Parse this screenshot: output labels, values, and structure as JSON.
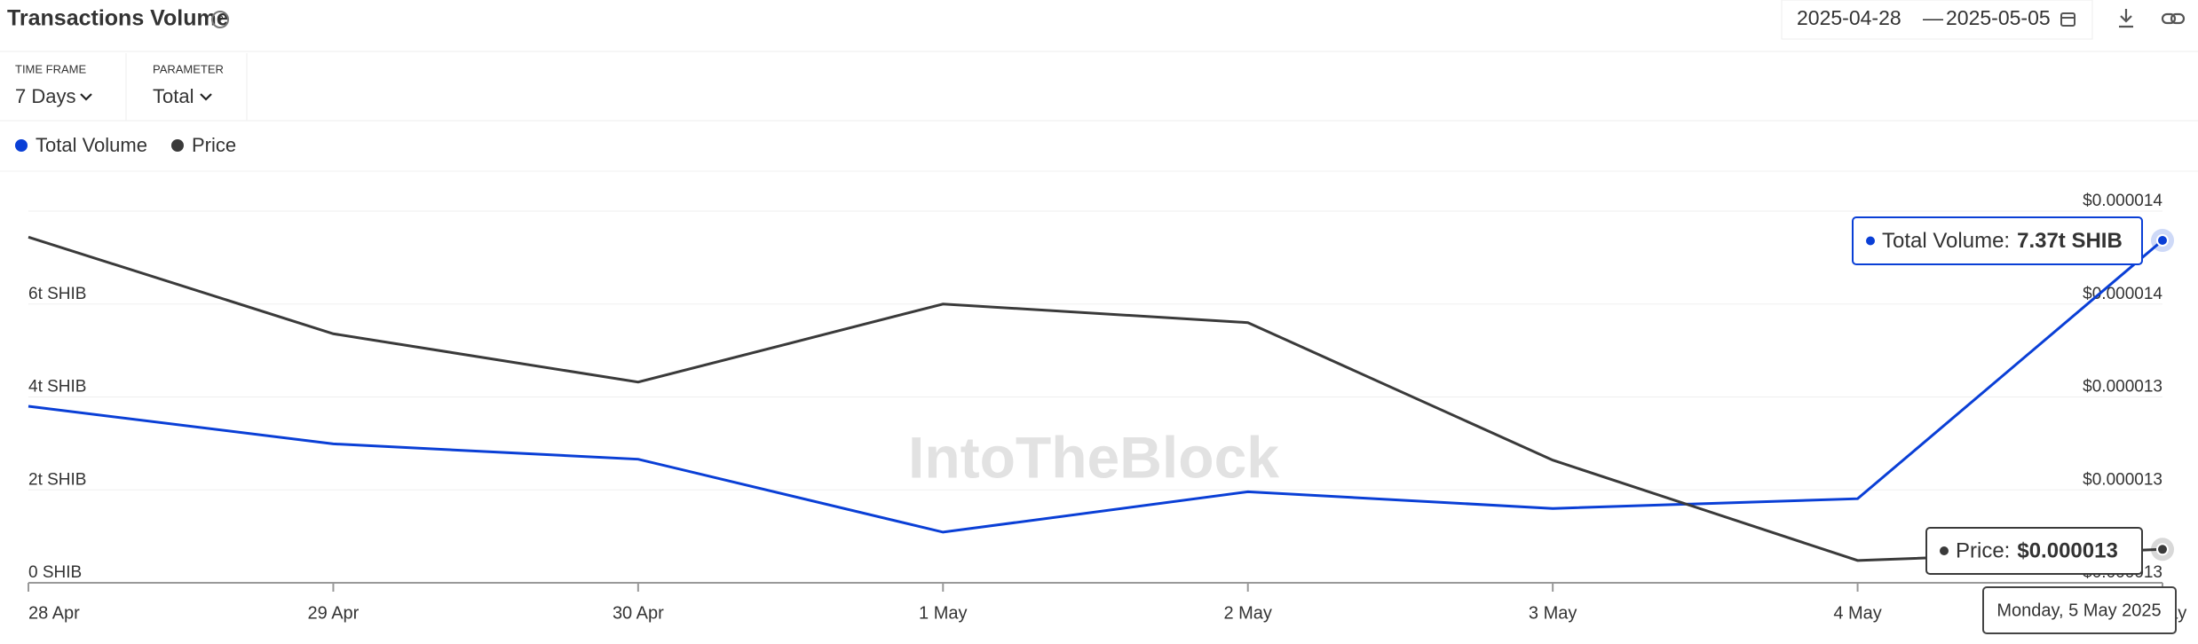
{
  "header": {
    "title": "Transactions Volume",
    "date_from": "2025-04-28",
    "date_sep": "—",
    "date_to": "2025-05-05"
  },
  "controls": [
    {
      "label": "TIME FRAME",
      "value": "7 Days"
    },
    {
      "label": "PARAMETER",
      "value": "Total"
    }
  ],
  "watermark": "IntoTheBlock",
  "chart_data": {
    "type": "line",
    "categories": [
      "28 Apr",
      "29 Apr",
      "30 Apr",
      "1 May",
      "2 May",
      "3 May",
      "4 May",
      "5 May"
    ],
    "series": [
      {
        "name": "Total Volume",
        "color": "#0a3fd6",
        "values": [
          3.8,
          2.99,
          2.66,
          1.09,
          1.96,
          1.6,
          1.81,
          7.37
        ],
        "value_labels": [
          null,
          null,
          null,
          null,
          null,
          null,
          null,
          "7.37t SHIB"
        ]
      },
      {
        "name": "Price",
        "color": "#3a3a3a",
        "axis": "y2",
        "values": [
          1.368e-05,
          1.342e-05,
          1.329e-05,
          1.35e-05,
          1.345e-05,
          1.308e-05,
          1.281e-05,
          1.284e-05
        ],
        "value_labels": [
          null,
          null,
          null,
          null,
          null,
          null,
          null,
          "$0.000013"
        ]
      }
    ],
    "ylim": [
      0,
      8
    ],
    "yticks": [
      {
        "value": 0,
        "label": "0 SHIB"
      },
      {
        "value": 2,
        "label": "2t SHIB"
      },
      {
        "value": 4,
        "label": "4t SHIB"
      },
      {
        "value": 6,
        "label": "6t SHIB"
      }
    ],
    "y2lim": [
      1.275e-05,
      1.375e-05
    ],
    "y2ticks": [
      {
        "value": 1.275e-05,
        "label": "$0.000013"
      },
      {
        "value": 1.3e-05,
        "label": "$0.000013"
      },
      {
        "value": 1.325e-05,
        "label": "$0.000013"
      },
      {
        "value": 1.35e-05,
        "label": "$0.000014"
      },
      {
        "value": 1.375e-05,
        "label": "$0.000014"
      }
    ],
    "grid": true,
    "tooltip": {
      "labels": [
        "Total Volume:",
        "Price:"
      ],
      "date": "Monday, 5 May 2025"
    }
  }
}
